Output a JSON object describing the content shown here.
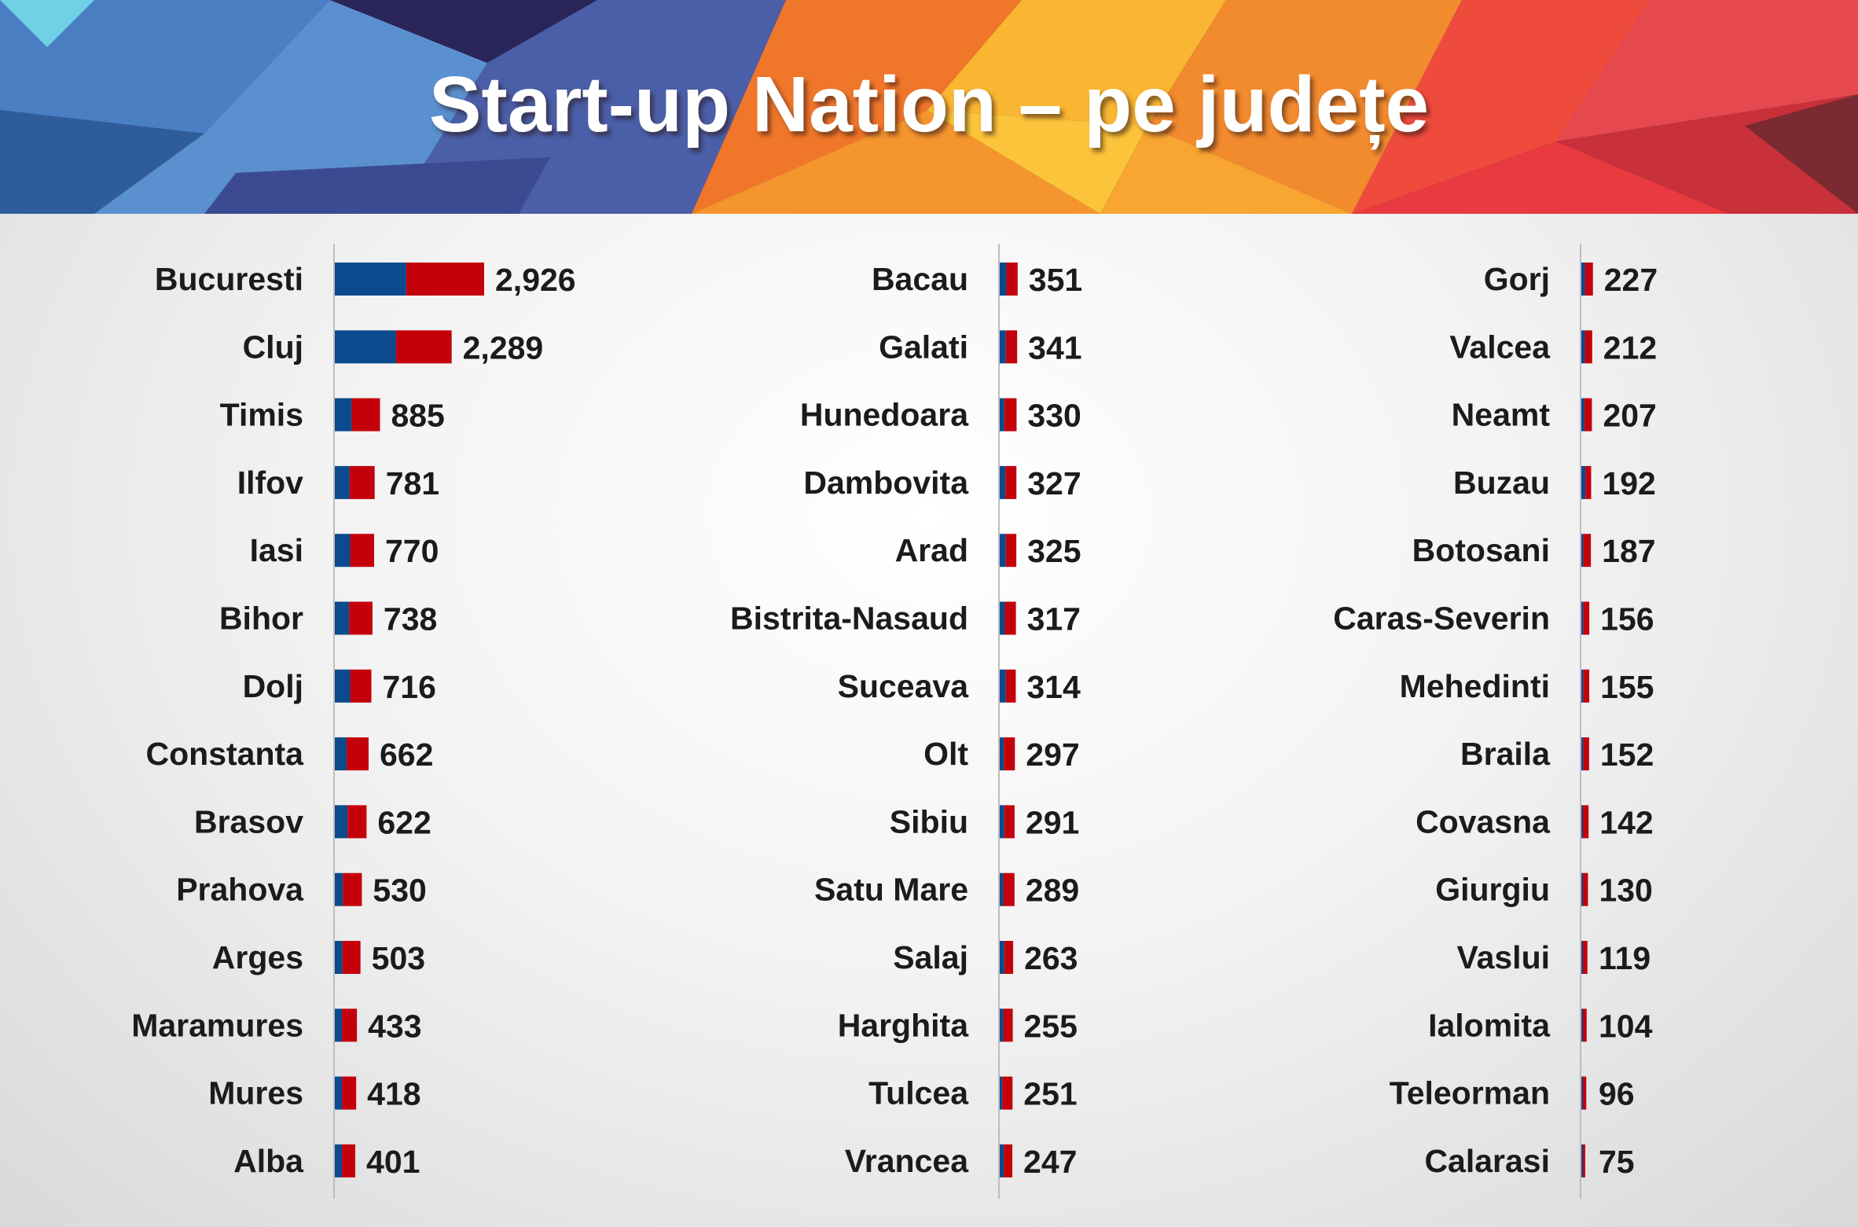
{
  "title": "Start-up Nation – pe județe",
  "colors": {
    "bar_blue": "#0b4a8c",
    "bar_red": "#c4000b",
    "axis": "#bdbdbd",
    "text": "#1b1b1b"
  },
  "chart_data": {
    "type": "bar",
    "orientation": "horizontal",
    "stacked": true,
    "columns": [
      {
        "categories": [
          "Bucuresti",
          "Cluj",
          "Timis",
          "Ilfov",
          "Iasi",
          "Bihor",
          "Dolj",
          "Constanta",
          "Brasov",
          "Prahova",
          "Arges",
          "Maramures",
          "Mures",
          "Alba"
        ],
        "values": [
          2926,
          2289,
          885,
          781,
          770,
          738,
          716,
          662,
          622,
          530,
          503,
          433,
          418,
          401
        ],
        "value_labels": [
          "2,926",
          "2,289",
          "885",
          "781",
          "770",
          "738",
          "716",
          "662",
          "622",
          "530",
          "503",
          "433",
          "418",
          "401"
        ],
        "blue_values": [
          1400,
          1200,
          330,
          290,
          300,
          280,
          300,
          230,
          250,
          160,
          150,
          140,
          140,
          140
        ]
      },
      {
        "categories": [
          "Bacau",
          "Galati",
          "Hunedoara",
          "Dambovita",
          "Arad",
          "Bistrita-Nasaud",
          "Suceava",
          "Olt",
          "Sibiu",
          "Satu Mare",
          "Salaj",
          "Harghita",
          "Tulcea",
          "Vrancea"
        ],
        "values": [
          351,
          341,
          330,
          327,
          325,
          317,
          314,
          297,
          291,
          289,
          263,
          255,
          251,
          247
        ],
        "value_labels": [
          "351",
          "341",
          "330",
          "327",
          "325",
          "317",
          "314",
          "297",
          "291",
          "289",
          "263",
          "255",
          "251",
          "247"
        ],
        "blue_values": [
          130,
          120,
          90,
          110,
          120,
          100,
          120,
          80,
          90,
          70,
          90,
          70,
          50,
          80
        ]
      },
      {
        "categories": [
          "Gorj",
          "Valcea",
          "Neamt",
          "Buzau",
          "Botosani",
          "Caras-Severin",
          "Mehedinti",
          "Braila",
          "Covasna",
          "Giurgiu",
          "Vaslui",
          "Ialomita",
          "Teleorman",
          "Calarasi"
        ],
        "values": [
          227,
          212,
          207,
          192,
          187,
          156,
          155,
          152,
          142,
          130,
          119,
          104,
          96,
          75
        ],
        "value_labels": [
          "227",
          "212",
          "207",
          "192",
          "187",
          "156",
          "155",
          "152",
          "142",
          "130",
          "119",
          "104",
          "96",
          "75"
        ],
        "blue_values": [
          70,
          70,
          60,
          80,
          40,
          40,
          40,
          40,
          30,
          30,
          30,
          30,
          20,
          20
        ]
      }
    ]
  }
}
